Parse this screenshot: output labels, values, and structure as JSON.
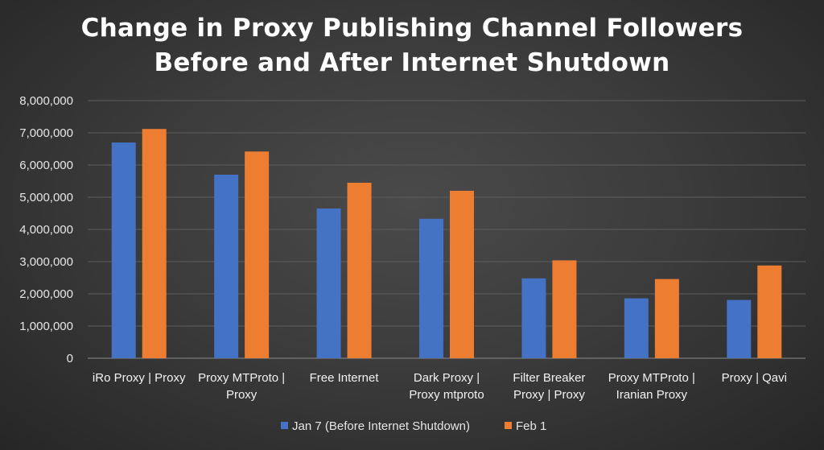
{
  "chart_data": {
    "type": "bar",
    "title_lines": [
      "Change in Proxy Publishing Channel Followers",
      "Before and After Internet Shutdown"
    ],
    "categories": [
      [
        "iRo Proxy | Proxy"
      ],
      [
        "Proxy MTProto |",
        "Proxy"
      ],
      [
        "Free Internet"
      ],
      [
        "Dark Proxy |",
        "Proxy mtproto"
      ],
      [
        "Filter Breaker",
        "Proxy | Proxy"
      ],
      [
        "Proxy MTProto |",
        "Iranian Proxy"
      ],
      [
        "Proxy | Qavi"
      ]
    ],
    "series": [
      {
        "name": "Jan 7 (Before Internet Shutdown)",
        "color": "#4472C4",
        "values": [
          6700000,
          5700000,
          4650000,
          4330000,
          2480000,
          1860000,
          1810000
        ]
      },
      {
        "name": "Feb 1",
        "color": "#ED7D31",
        "values": [
          7120000,
          6420000,
          5450000,
          5200000,
          3040000,
          2460000,
          2880000
        ]
      }
    ],
    "ylim": [
      0,
      8000000
    ],
    "y_ticks": [
      "0",
      "1,000,000",
      "2,000,000",
      "3,000,000",
      "4,000,000",
      "5,000,000",
      "6,000,000",
      "7,000,000",
      "8,000,000"
    ],
    "grid": true,
    "legend_position": "bottom"
  }
}
